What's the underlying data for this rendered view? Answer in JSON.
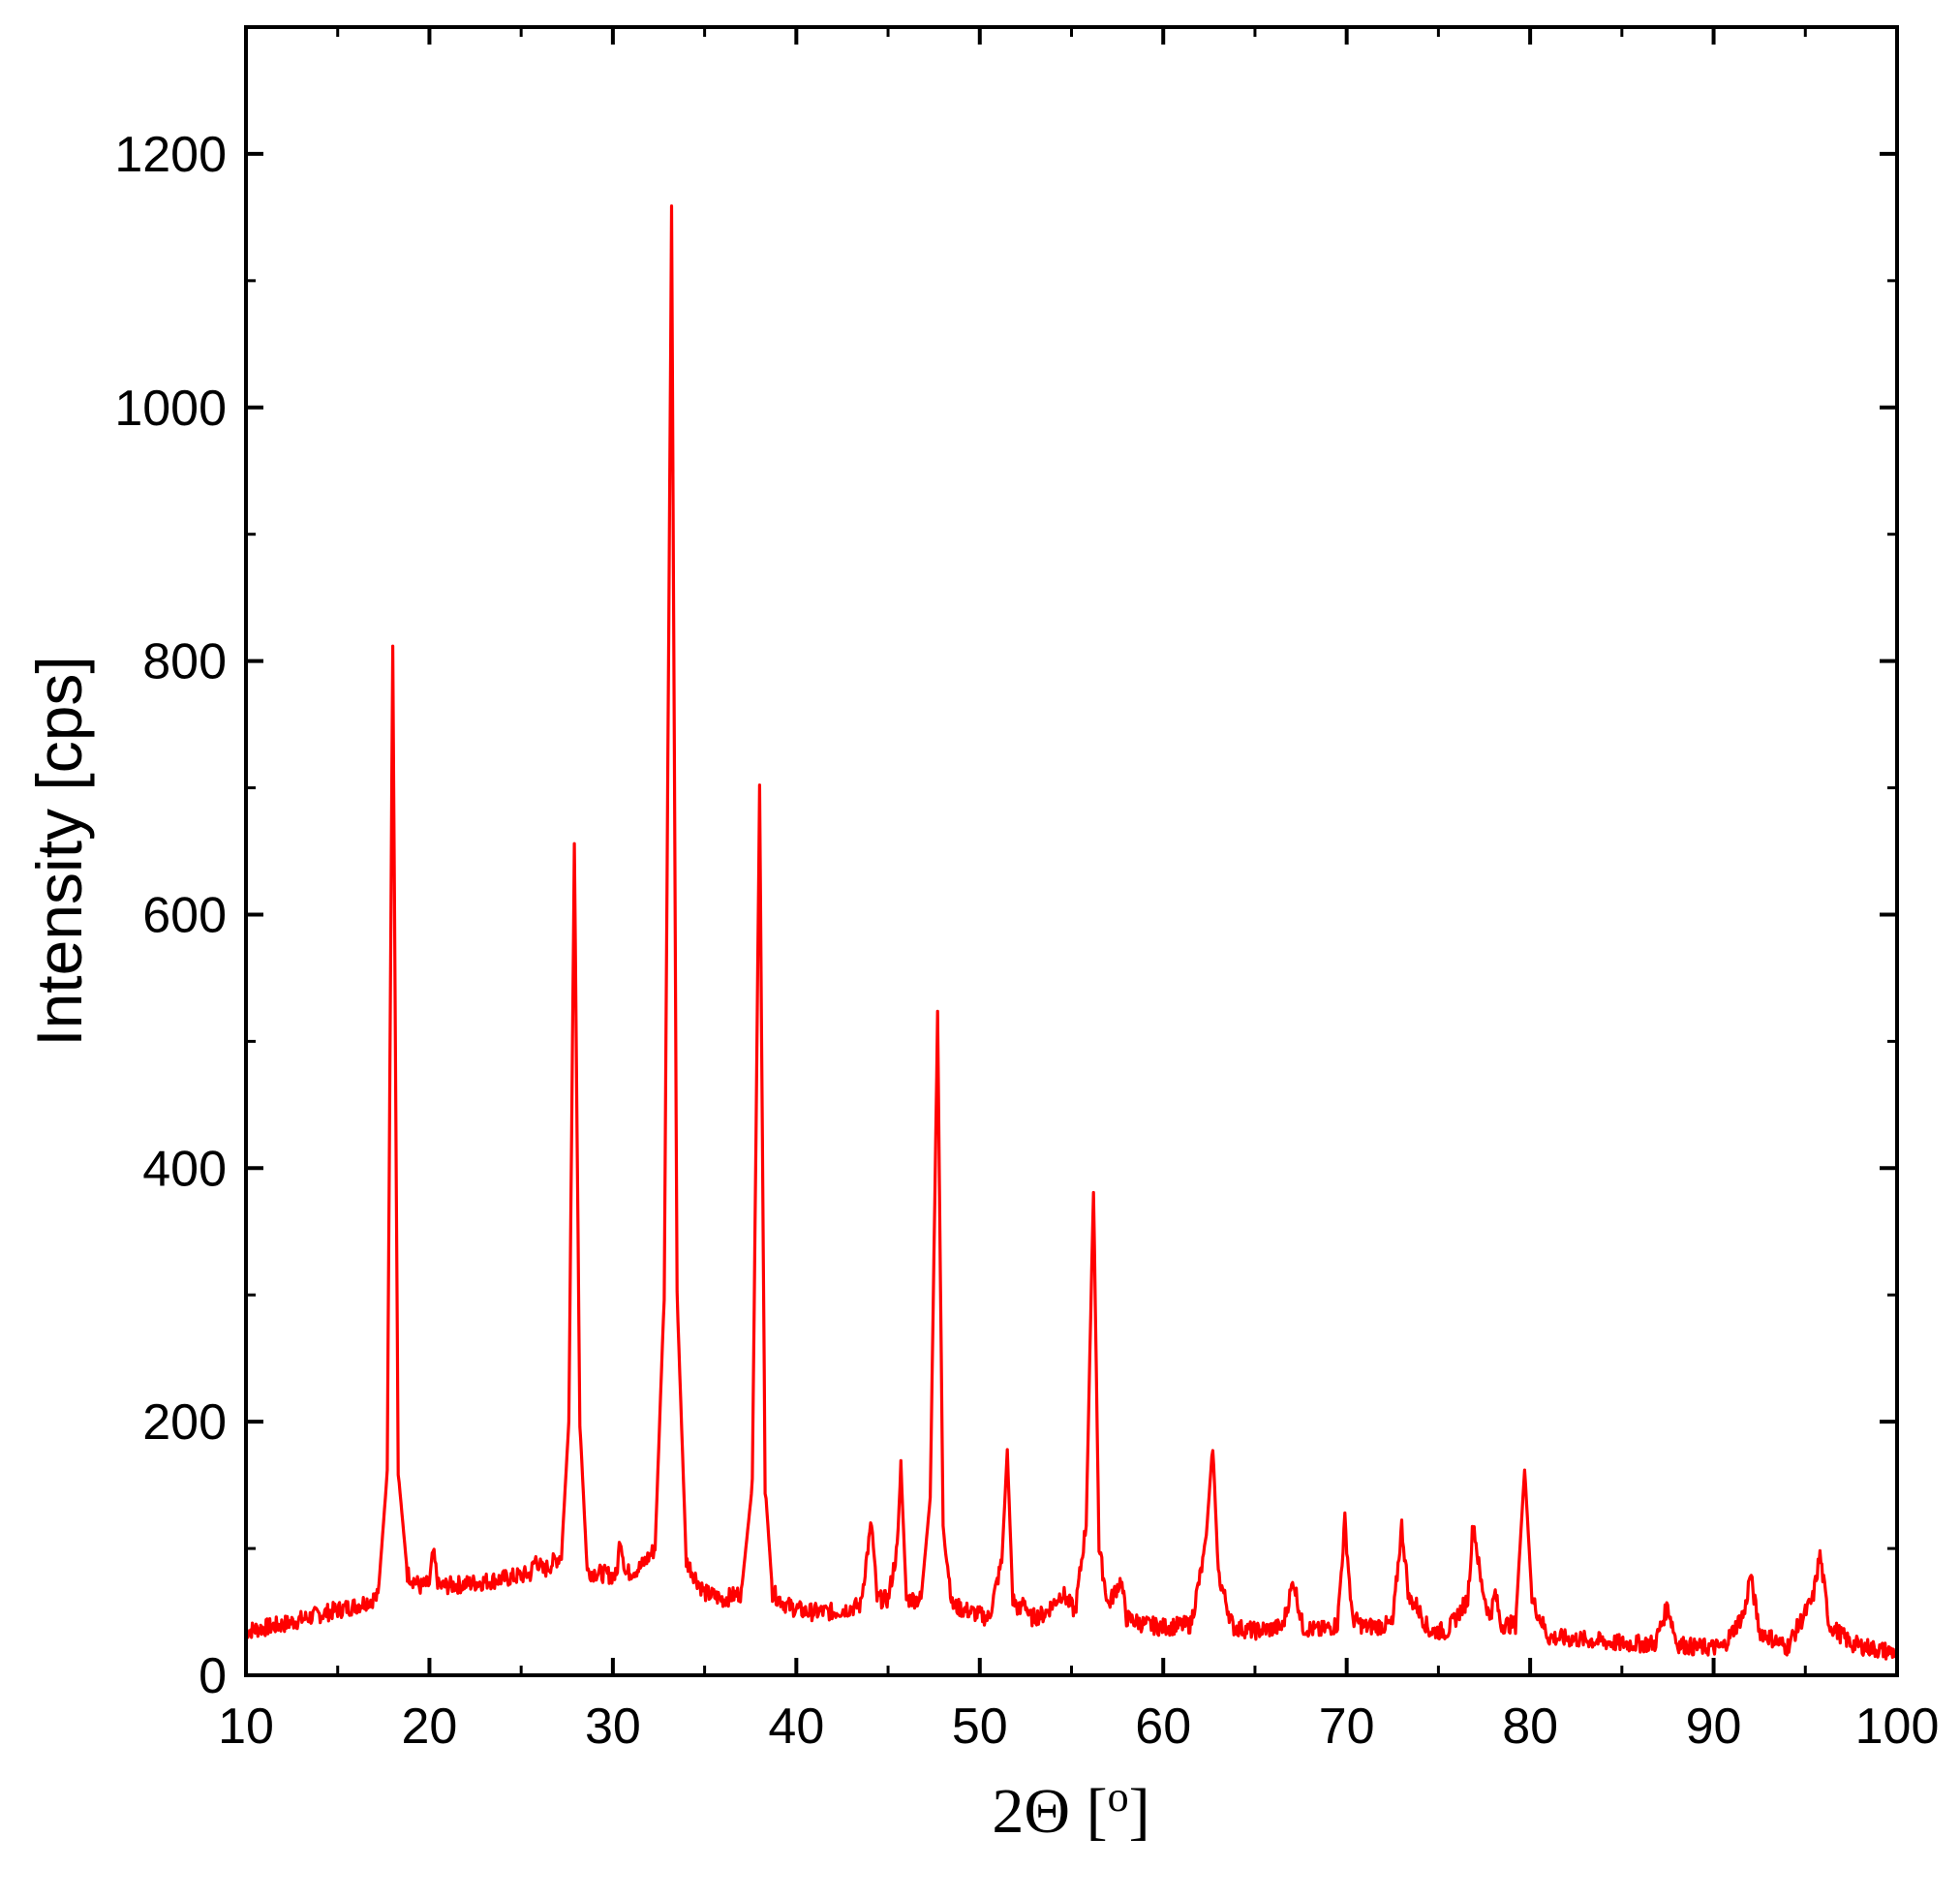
{
  "chart_data": {
    "type": "line",
    "title": "",
    "xlabel": "2Θ [o]",
    "ylabel": "Intensity [cps]",
    "xlim": [
      10,
      100
    ],
    "ylim": [
      0,
      1300
    ],
    "x_ticks": [
      10,
      20,
      30,
      40,
      50,
      60,
      70,
      80,
      90,
      100
    ],
    "x_tick_labels": [
      "10",
      "20",
      "30",
      "40",
      "50",
      "60",
      "70",
      "80",
      "90",
      "100"
    ],
    "y_ticks": [
      0,
      200,
      400,
      600,
      800,
      1000,
      1200
    ],
    "y_tick_labels": [
      "0",
      "200",
      "400",
      "600",
      "800",
      "1000",
      "1200"
    ],
    "grid": false,
    "legend": "none",
    "series": [
      {
        "color": "#ff0000",
        "x": [
          10,
          12,
          14,
          16,
          17.2,
          17.7,
          18.0,
          18.3,
          18.8,
          19.5,
          20.0,
          20.2,
          20.5,
          22,
          24,
          25.5,
          25.8,
          26.2,
          27.2,
          27.6,
          27.9,
          28.2,
          28.6,
          29.5,
          30.2,
          30.4,
          30.7,
          31.5,
          32.3,
          32.8,
          33.2,
          33.5,
          34.0,
          35.0,
          36.0,
          37.0,
          37.6,
          38.0,
          38.3,
          38.7,
          39.5,
          40.5,
          42,
          43.5,
          43.9,
          44.1,
          44.4,
          45.0,
          45.5,
          45.7,
          46.0,
          46.8,
          47.3,
          47.7,
          48.0,
          48.5,
          49.5,
          50.5,
          51.2,
          51.5,
          51.8,
          52.2,
          52.4,
          52.7,
          53.5,
          54.5,
          55.2,
          55.8,
          56.2,
          56.5,
          57.0,
          57.5,
          57.7,
          58.0,
          59,
          60,
          61.5,
          62.3,
          62.7,
          63.0,
          63.8,
          65,
          66.5,
          67.1,
          67.6,
          68.5,
          69.5,
          69.9,
          70.3,
          71,
          72.5,
          73.0,
          73.4,
          73.8,
          74.5,
          75.5,
          76.6,
          76.9,
          77.3,
          77.8,
          78.1,
          78.4,
          79.2,
          79.7,
          80.1,
          81,
          83,
          85,
          86.8,
          87.5,
          88.0,
          89,
          90.5,
          91.7,
          92.0,
          92.5,
          94,
          95.4,
          95.8,
          96.3,
          97.5,
          99,
          100
        ],
        "values": [
          35,
          40,
          48,
          55,
          62,
          160,
          815,
          160,
          80,
          70,
          72,
          97,
          70,
          72,
          76,
          80,
          92,
          82,
          95,
          200,
          655,
          200,
          82,
          80,
          78,
          110,
          80,
          85,
          100,
          300,
          1155,
          300,
          90,
          65,
          60,
          65,
          150,
          700,
          150,
          65,
          55,
          50,
          50,
          55,
          100,
          120,
          60,
          60,
          100,
          165,
          60,
          60,
          140,
          520,
          120,
          55,
          50,
          45,
          90,
          177,
          60,
          50,
          62,
          45,
          48,
          65,
          50,
          120,
          385,
          100,
          55,
          70,
          75,
          45,
          40,
          38,
          40,
          100,
          183,
          80,
          38,
          35,
          38,
          75,
          38,
          35,
          40,
          122,
          45,
          38,
          40,
          118,
          60,
          55,
          35,
          35,
          60,
          122,
          75,
          45,
          65,
          40,
          40,
          163,
          60,
          30,
          28,
          25,
          25,
          55,
          25,
          22,
          22,
          50,
          80,
          35,
          22,
          60,
          95,
          40,
          25,
          20,
          18
        ]
      }
    ]
  }
}
